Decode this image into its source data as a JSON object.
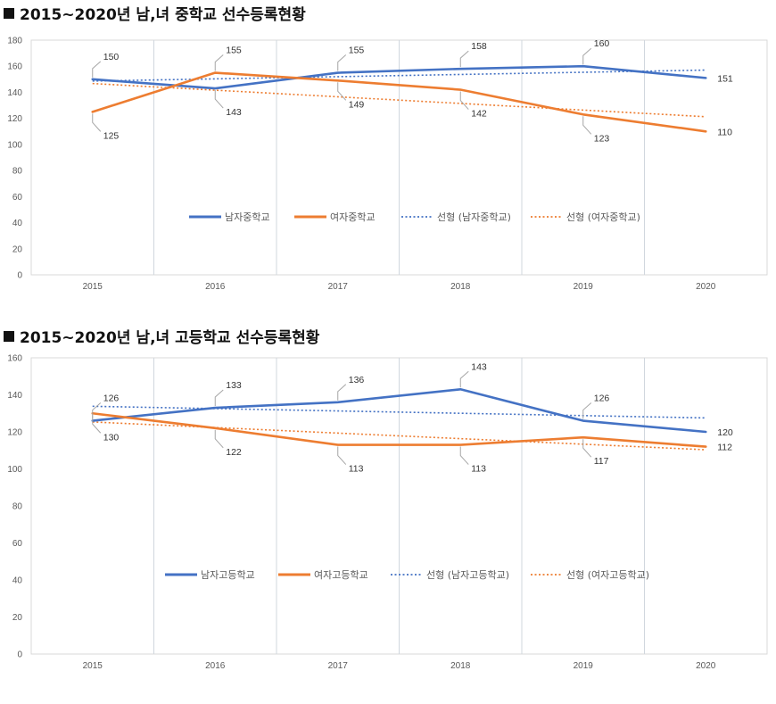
{
  "charts": [
    {
      "title": "2015~2020년 남,녀 중학교 선수등록현황",
      "chart_data": {
        "type": "line",
        "categories": [
          "2015",
          "2016",
          "2017",
          "2018",
          "2019",
          "2020"
        ],
        "ylim": [
          0,
          180
        ],
        "ystep": 20,
        "grid": "vertical",
        "legend_position": "bottom-center",
        "series": [
          {
            "name": "남자중학교",
            "values": [
              150,
              143,
              155,
              158,
              160,
              151
            ],
            "color": "#4472C4",
            "label_side": [
              "above",
              "below",
              "above",
              "above",
              "above",
              "right"
            ]
          },
          {
            "name": "여자중학교",
            "values": [
              125,
              155,
              149,
              142,
              123,
              110
            ],
            "color": "#ED7D31",
            "label_side": [
              "below",
              "above",
              "below",
              "below",
              "below",
              "right"
            ]
          }
        ],
        "trendlines": [
          {
            "name": "선형 (남자중학교)",
            "of": 0,
            "color": "#4472C4"
          },
          {
            "name": "선형 (여자중학교)",
            "of": 1,
            "color": "#ED7D31"
          }
        ]
      }
    },
    {
      "title": "2015~2020년 남,녀 고등학교 선수등록현황",
      "chart_data": {
        "type": "line",
        "categories": [
          "2015",
          "2016",
          "2017",
          "2018",
          "2019",
          "2020"
        ],
        "ylim": [
          0,
          160
        ],
        "ystep": 20,
        "grid": "vertical",
        "legend_position": "bottom-center",
        "series": [
          {
            "name": "남자고등학교",
            "values": [
              126,
              133,
              136,
              143,
              126,
              120
            ],
            "color": "#4472C4",
            "label_side": [
              "above",
              "above",
              "above",
              "above",
              "above",
              "right"
            ]
          },
          {
            "name": "여자고등학교",
            "values": [
              130,
              122,
              113,
              113,
              117,
              112
            ],
            "color": "#ED7D31",
            "label_side": [
              "below",
              "below",
              "below",
              "below",
              "below",
              "right"
            ]
          }
        ],
        "trendlines": [
          {
            "name": "선형 (남자고등학교)",
            "of": 0,
            "color": "#4472C4"
          },
          {
            "name": "선형 (여자고등학교)",
            "of": 1,
            "color": "#ED7D31"
          }
        ]
      }
    }
  ]
}
